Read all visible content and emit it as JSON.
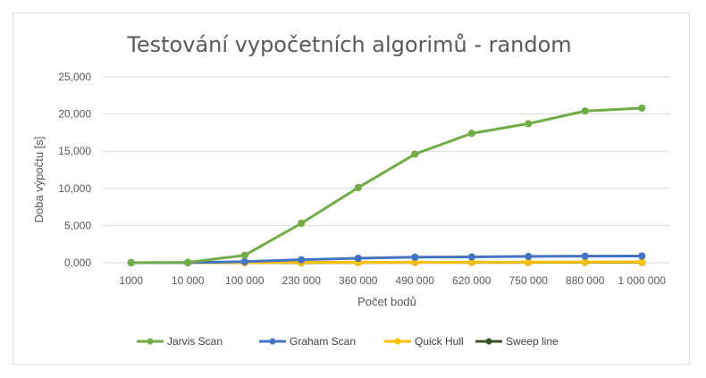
{
  "chart_data": {
    "type": "line",
    "title": "Testování vypočetních algorimů - random",
    "xlabel": "Počet bodů",
    "ylabel": "Doba výpočtu [s]",
    "categories": [
      "1000",
      "10 000",
      "100 000",
      "230 000",
      "360 000",
      "490 000",
      "620 000",
      "750 000",
      "880 000",
      "1 000 000"
    ],
    "ylim": [
      0,
      25
    ],
    "yticks": [
      "0,000",
      "5,000",
      "10,000",
      "15,000",
      "20,000",
      "25,000"
    ],
    "grid": true,
    "legend_position": "bottom",
    "series": [
      {
        "name": "Jarvis Scan",
        "color": "#70ad47",
        "values": [
          0.0,
          0.05,
          1.0,
          5.3,
          10.1,
          14.6,
          17.4,
          18.7,
          20.4,
          20.8
        ]
      },
      {
        "name": "Graham Scan",
        "color": "#4472c4",
        "values": [
          0.0,
          0.02,
          0.15,
          0.4,
          0.6,
          0.75,
          0.78,
          0.85,
          0.88,
          0.9
        ]
      },
      {
        "name": "Quick Hull",
        "color": "#ffc000",
        "values": [
          0.0,
          0.0,
          0.02,
          0.04,
          0.05,
          0.06,
          0.07,
          0.08,
          0.09,
          0.1
        ]
      },
      {
        "name": "Sweep line",
        "color": "#375623",
        "values": [
          0.0,
          0.0,
          0.01,
          0.02,
          0.03,
          0.04,
          0.05,
          0.05,
          0.06,
          0.07
        ]
      }
    ]
  }
}
